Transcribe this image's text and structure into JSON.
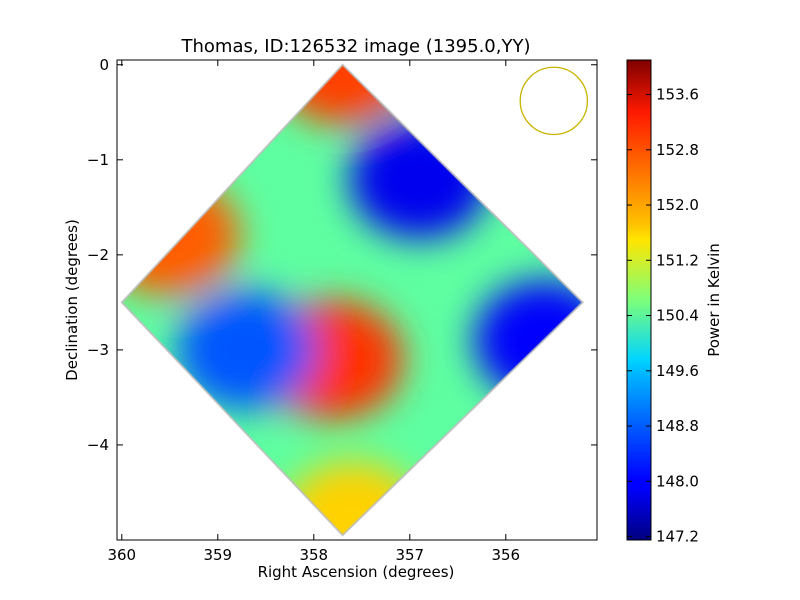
{
  "chart_data": {
    "type": "heatmap",
    "title": "Thomas, ID:126532 image (1395.0,YY)",
    "xlabel": "Right Ascension (degrees)",
    "ylabel": "Declination (degrees)",
    "xlim": [
      360.05,
      355.05
    ],
    "ylim": [
      -5.0,
      0.05
    ],
    "x_ticks": [
      360,
      359,
      358,
      357,
      356
    ],
    "x_tick_labels": [
      "360",
      "359",
      "358",
      "357",
      "356"
    ],
    "y_ticks": [
      0,
      -1,
      -2,
      -3,
      -4
    ],
    "y_tick_labels": [
      "0",
      "−1",
      "−2",
      "−3",
      "−4"
    ],
    "colorbar": {
      "label": "Power in Kelvin",
      "range": [
        147.15,
        154.1
      ],
      "ticks": [
        153.6,
        152.8,
        152.0,
        151.2,
        150.4,
        149.6,
        148.8,
        148.0,
        147.2
      ],
      "tick_labels": [
        "153.6",
        "152.8",
        "152.0",
        "151.2",
        "150.4",
        "149.6",
        "148.8",
        "148.0",
        "147.2"
      ],
      "colormap": "jet"
    },
    "footprint": {
      "shape": "diamond",
      "corners_radec": [
        [
          357.7,
          0.0
        ],
        [
          355.2,
          -2.5
        ],
        [
          357.7,
          -4.95
        ],
        [
          360.0,
          -2.5
        ]
      ]
    },
    "beam": {
      "shape": "circle",
      "center_radec": [
        355.5,
        -0.38
      ],
      "radius_deg": 0.35,
      "color": "#c8b400"
    },
    "features": [
      {
        "label": "",
        "kind": "maximum",
        "ra": 357.7,
        "dec": 0.0,
        "value": 152.8
      },
      {
        "label": "",
        "kind": "maximum",
        "ra": 359.5,
        "dec": -1.8,
        "value": 152.6
      },
      {
        "label": "",
        "kind": "maximum",
        "ra": 357.8,
        "dec": -3.1,
        "value": 152.9
      },
      {
        "label": "",
        "kind": "minimum",
        "ra": 356.9,
        "dec": -1.2,
        "value": 147.9
      },
      {
        "label": "",
        "kind": "minimum",
        "ra": 355.6,
        "dec": -2.9,
        "value": 148.0
      },
      {
        "label": "",
        "kind": "minimum",
        "ra": 358.7,
        "dec": -3.0,
        "value": 148.6
      },
      {
        "label": "",
        "kind": "maximum",
        "ra": 357.6,
        "dec": -4.8,
        "value": 151.8
      }
    ],
    "background_value": 150.4,
    "grid": false,
    "legend": "none"
  }
}
